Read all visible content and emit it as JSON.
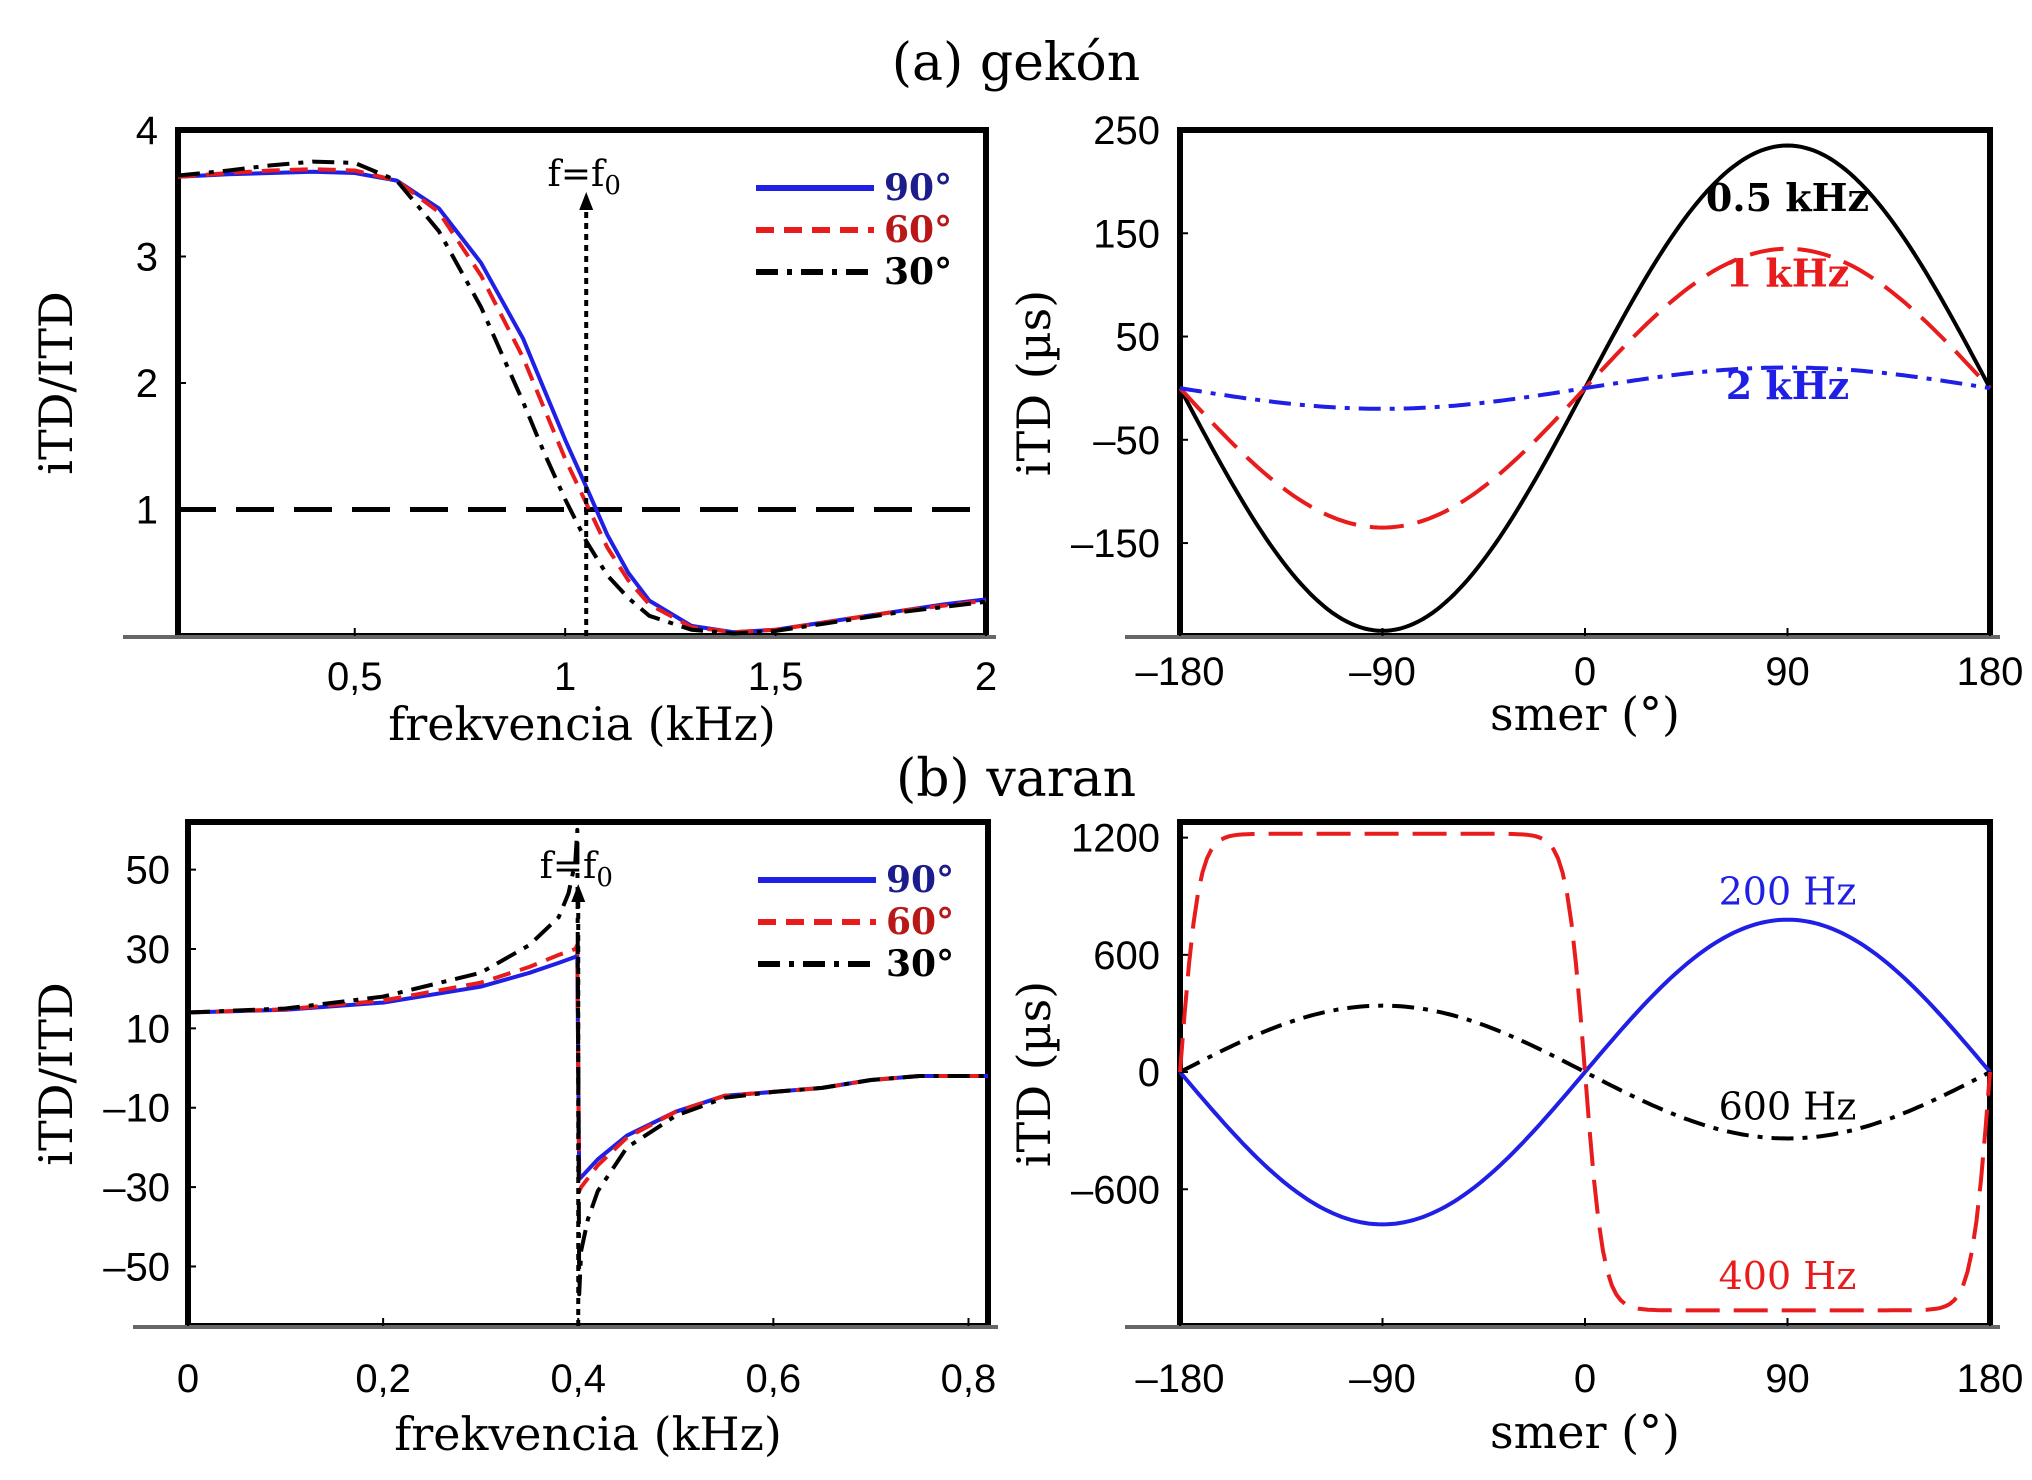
{
  "section_titles": {
    "a": "(a) gekón",
    "b": "(b) varan"
  },
  "colors": {
    "blue": "#1f1fe6",
    "red": "#e81c1c",
    "black": "#000000",
    "axis": "#000000",
    "baseline": "#666666"
  },
  "chart_data": [
    {
      "id": "a-left",
      "type": "line",
      "xlabel": "frekvencia (kHz)",
      "ylabel": "iTD/ITD",
      "xlim": [
        0.08,
        2.0
      ],
      "ylim": [
        0,
        4
      ],
      "xticks": [
        {
          "v": 0.5,
          "label": "0,5"
        },
        {
          "v": 1,
          "label": "1"
        },
        {
          "v": 1.5,
          "label": "1,5"
        },
        {
          "v": 2,
          "label": "2"
        }
      ],
      "yticks": [
        {
          "v": 1,
          "label": "1"
        },
        {
          "v": 2,
          "label": "2"
        },
        {
          "v": 3,
          "label": "3"
        },
        {
          "v": 4,
          "label": "4"
        }
      ],
      "hline": 1,
      "marker": {
        "x": 1.05,
        "label": "f=f",
        "sub": "0"
      },
      "legend": {
        "position": "top-right",
        "entries": [
          {
            "label": "90°",
            "color": "#1f1fe6",
            "dash": "solid"
          },
          {
            "label": "60°",
            "color": "#e81c1c",
            "dash": "dashed"
          },
          {
            "label": "30°",
            "color": "#000000",
            "dash": "dashdot"
          }
        ]
      },
      "series": [
        {
          "name": "90°",
          "color": "#1f1fe6",
          "dash": "solid",
          "x": [
            0.08,
            0.2,
            0.3,
            0.4,
            0.5,
            0.6,
            0.7,
            0.8,
            0.9,
            0.95,
            1.0,
            1.05,
            1.1,
            1.15,
            1.2,
            1.3,
            1.4,
            1.5,
            1.6,
            1.7,
            1.8,
            1.9,
            2.0
          ],
          "y": [
            3.63,
            3.65,
            3.66,
            3.67,
            3.66,
            3.6,
            3.38,
            2.95,
            2.35,
            1.95,
            1.55,
            1.18,
            0.8,
            0.5,
            0.28,
            0.08,
            0.03,
            0.05,
            0.1,
            0.15,
            0.2,
            0.25,
            0.29
          ]
        },
        {
          "name": "60°",
          "color": "#e81c1c",
          "dash": "dashed",
          "x": [
            0.08,
            0.2,
            0.3,
            0.4,
            0.5,
            0.6,
            0.7,
            0.8,
            0.9,
            0.95,
            1.0,
            1.05,
            1.1,
            1.15,
            1.2,
            1.3,
            1.4,
            1.5,
            1.6,
            1.7,
            1.8,
            1.9,
            2.0
          ],
          "y": [
            3.63,
            3.66,
            3.68,
            3.69,
            3.68,
            3.6,
            3.35,
            2.85,
            2.2,
            1.8,
            1.4,
            1.05,
            0.7,
            0.44,
            0.25,
            0.07,
            0.03,
            0.05,
            0.1,
            0.15,
            0.2,
            0.24,
            0.28
          ]
        },
        {
          "name": "30°",
          "color": "#000000",
          "dash": "dashdot",
          "x": [
            0.08,
            0.2,
            0.3,
            0.4,
            0.5,
            0.6,
            0.7,
            0.8,
            0.9,
            0.95,
            1.0,
            1.05,
            1.1,
            1.15,
            1.2,
            1.3,
            1.4,
            1.5,
            1.6,
            1.7,
            1.8,
            1.9,
            2.0
          ],
          "y": [
            3.64,
            3.68,
            3.72,
            3.75,
            3.74,
            3.6,
            3.2,
            2.6,
            1.85,
            1.45,
            1.08,
            0.75,
            0.48,
            0.3,
            0.16,
            0.05,
            0.02,
            0.04,
            0.09,
            0.14,
            0.19,
            0.23,
            0.27
          ]
        }
      ]
    },
    {
      "id": "a-right",
      "type": "line",
      "xlabel": "smer (°)",
      "ylabel": "iTD (µs)",
      "xlim": [
        -180,
        180
      ],
      "ylim": [
        -240,
        250
      ],
      "xticks": [
        {
          "v": -180,
          "label": "–180"
        },
        {
          "v": -90,
          "label": "–90"
        },
        {
          "v": 0,
          "label": "0"
        },
        {
          "v": 90,
          "label": "90"
        },
        {
          "v": 180,
          "label": "180"
        }
      ],
      "yticks": [
        {
          "v": 250,
          "label": "250"
        },
        {
          "v": 150,
          "label": "150"
        },
        {
          "v": 50,
          "label": "50"
        },
        {
          "v": -50,
          "label": "–50"
        },
        {
          "v": -150,
          "label": "–150"
        }
      ],
      "series": [
        {
          "name": "0.5 kHz",
          "color": "#000000",
          "dash": "solid",
          "amplitude": 235,
          "label_x": 90,
          "label_y": 185
        },
        {
          "name": "1 kHz",
          "color": "#e81c1c",
          "dash": "longdash",
          "amplitude": 135,
          "label_x": 90,
          "label_y": 112
        },
        {
          "name": "2 kHz",
          "color": "#1f1fe6",
          "dash": "dashdot",
          "amplitude": 20,
          "label_x": 90,
          "label_y": 3
        }
      ]
    },
    {
      "id": "b-left",
      "type": "line",
      "xlabel": "frekvencia (kHz)",
      "ylabel": "iTD/ITD",
      "xlim": [
        0,
        0.82
      ],
      "ylim": [
        -65,
        62
      ],
      "xticks": [
        {
          "v": 0,
          "label": "0"
        },
        {
          "v": 0.2,
          "label": "0,2"
        },
        {
          "v": 0.4,
          "label": "0,4"
        },
        {
          "v": 0.6,
          "label": "0,6"
        },
        {
          "v": 0.8,
          "label": "0,8"
        }
      ],
      "yticks": [
        {
          "v": 50,
          "label": "50"
        },
        {
          "v": 30,
          "label": "30"
        },
        {
          "v": 10,
          "label": "10"
        },
        {
          "v": -10,
          "label": "–10"
        },
        {
          "v": -30,
          "label": "–30"
        },
        {
          "v": -50,
          "label": "–50"
        }
      ],
      "marker": {
        "x": 0.4,
        "label": "f=f",
        "sub": "0"
      },
      "legend": {
        "position": "top-right",
        "entries": [
          {
            "label": "90°",
            "color": "#1f1fe6",
            "dash": "solid"
          },
          {
            "label": "60°",
            "color": "#e81c1c",
            "dash": "dashed"
          },
          {
            "label": "30°",
            "color": "#000000",
            "dash": "dashdot"
          }
        ]
      },
      "series": [
        {
          "name": "90°",
          "color": "#1f1fe6",
          "dash": "solid",
          "x": [
            0,
            0.1,
            0.2,
            0.3,
            0.35,
            0.38,
            0.397,
            0.399,
            0.401,
            0.403,
            0.42,
            0.45,
            0.5,
            0.55,
            0.6,
            0.65,
            0.7,
            0.75,
            0.82
          ],
          "y": [
            14,
            14.7,
            16.5,
            20.5,
            24,
            26.5,
            28,
            28.5,
            -28,
            -27.5,
            -23,
            -17,
            -11,
            -7,
            -6,
            -5,
            -3,
            -2,
            -2
          ]
        },
        {
          "name": "60°",
          "color": "#e81c1c",
          "dash": "dashed",
          "x": [
            0,
            0.1,
            0.2,
            0.3,
            0.35,
            0.38,
            0.397,
            0.399,
            0.401,
            0.403,
            0.42,
            0.45,
            0.5,
            0.55,
            0.6,
            0.65,
            0.7,
            0.75,
            0.82
          ],
          "y": [
            14,
            14.8,
            17,
            21.5,
            25.5,
            28.5,
            30,
            31,
            -31,
            -30,
            -24.5,
            -17.5,
            -11,
            -7,
            -6,
            -5,
            -3,
            -2,
            -2
          ]
        },
        {
          "name": "30°",
          "color": "#000000",
          "dash": "dashdot",
          "x": [
            0,
            0.1,
            0.2,
            0.3,
            0.35,
            0.38,
            0.39,
            0.397,
            0.399,
            0.401,
            0.403,
            0.41,
            0.42,
            0.45,
            0.5,
            0.55,
            0.6,
            0.65,
            0.7,
            0.75,
            0.82
          ],
          "y": [
            14,
            15,
            18,
            24,
            31,
            38,
            44,
            52,
            60,
            -57,
            -46,
            -38,
            -31,
            -20,
            -12,
            -7.5,
            -6,
            -5,
            -3,
            -2,
            -2
          ]
        }
      ]
    },
    {
      "id": "b-right",
      "type": "line",
      "xlabel": "smer (°)",
      "ylabel": "iTD (µs)",
      "xlim": [
        -180,
        180
      ],
      "ylim": [
        -1300,
        1280
      ],
      "xticks": [
        {
          "v": -180,
          "label": "–180"
        },
        {
          "v": -90,
          "label": "–90"
        },
        {
          "v": 0,
          "label": "0"
        },
        {
          "v": 90,
          "label": "90"
        },
        {
          "v": 180,
          "label": "180"
        }
      ],
      "yticks": [
        {
          "v": 1200,
          "label": "1200"
        },
        {
          "v": 600,
          "label": "600"
        },
        {
          "v": 0,
          "label": "0"
        },
        {
          "v": -600,
          "label": "–600"
        }
      ],
      "series": [
        {
          "name": "200 Hz",
          "color": "#1f1fe6",
          "dash": "solid",
          "amplitude": 780,
          "label_x": 90,
          "label_y": 930
        },
        {
          "name": "600 Hz",
          "color": "#000000",
          "dash": "dashdot",
          "amplitude": -340,
          "label_x": 90,
          "label_y": -170
        },
        {
          "name": "400 Hz",
          "color": "#e81c1c",
          "dash": "longdash",
          "amplitude": -1220,
          "label_x": 90,
          "label_y": -1040
        }
      ]
    }
  ]
}
